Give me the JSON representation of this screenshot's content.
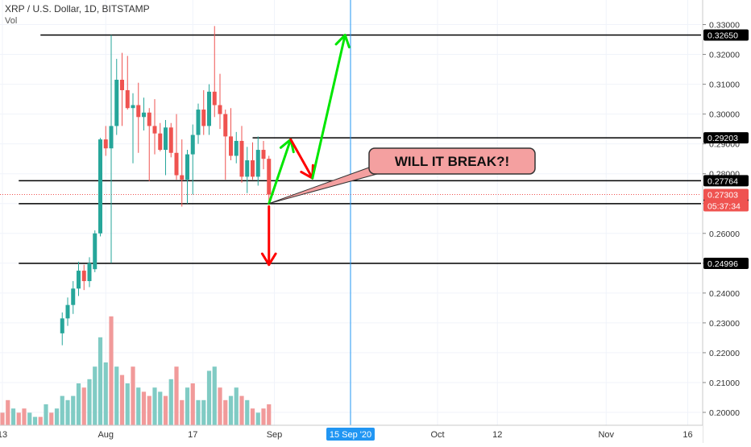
{
  "header": {
    "title": "XRP / U.S. Dollar, 1D, BITSTAMP",
    "vol_label": "Vol"
  },
  "colors": {
    "up": "#26a69a",
    "down": "#ef5350",
    "up_vol": "#80cbc4",
    "down_vol": "#f19a9a",
    "arrow_up": "#00e600",
    "arrow_down": "#ff0000",
    "callout_fill": "#f4a0a0",
    "crosshair": "#2196f3",
    "last_price": "#ef5350"
  },
  "chart_data": {
    "type": "candlestick",
    "symbol": "XRP / U.S. Dollar",
    "interval": "1D",
    "exchange": "BITSTAMP",
    "ylim": [
      0.1965,
      0.334
    ],
    "y_ticks": [
      0.2,
      0.21,
      0.22,
      0.23,
      0.24,
      0.25,
      0.26,
      0.27,
      0.28,
      0.29,
      0.3,
      0.31,
      0.32,
      0.33
    ],
    "x_ticks": [
      {
        "label": "13",
        "date": "2020-07-13"
      },
      {
        "label": "Aug",
        "date": "2020-08-01"
      },
      {
        "label": "17",
        "date": "2020-08-17"
      },
      {
        "label": "Sep",
        "date": "2020-09-01"
      },
      {
        "label": "Oct",
        "date": "2020-10-01"
      },
      {
        "label": "12",
        "date": "2020-10-12"
      },
      {
        "label": "Nov",
        "date": "2020-11-01"
      },
      {
        "label": "16",
        "date": "2020-11-16"
      }
    ],
    "candles": [
      {
        "date": "2020-07-24",
        "open": 0.2265,
        "high": 0.2335,
        "low": 0.2225,
        "close": 0.2315
      },
      {
        "date": "2020-07-25",
        "open": 0.2315,
        "high": 0.2385,
        "low": 0.229,
        "close": 0.236
      },
      {
        "date": "2020-07-26",
        "open": 0.236,
        "high": 0.244,
        "low": 0.233,
        "close": 0.2415
      },
      {
        "date": "2020-07-27",
        "open": 0.2415,
        "high": 0.2505,
        "low": 0.239,
        "close": 0.2475
      },
      {
        "date": "2020-07-28",
        "open": 0.2475,
        "high": 0.2495,
        "low": 0.241,
        "close": 0.244
      },
      {
        "date": "2020-07-29",
        "open": 0.244,
        "high": 0.252,
        "low": 0.242,
        "close": 0.25
      },
      {
        "date": "2020-07-30",
        "open": 0.248,
        "high": 0.261,
        "low": 0.247,
        "close": 0.26
      },
      {
        "date": "2020-07-31",
        "open": 0.26,
        "high": 0.292,
        "low": 0.259,
        "close": 0.2915
      },
      {
        "date": "2020-08-01",
        "open": 0.2915,
        "high": 0.296,
        "low": 0.286,
        "close": 0.2885
      },
      {
        "date": "2020-08-02",
        "open": 0.2885,
        "high": 0.3265,
        "low": 0.25,
        "close": 0.296
      },
      {
        "date": "2020-08-03",
        "open": 0.296,
        "high": 0.3185,
        "low": 0.293,
        "close": 0.3115
      },
      {
        "date": "2020-08-04",
        "open": 0.3115,
        "high": 0.3205,
        "low": 0.296,
        "close": 0.308
      },
      {
        "date": "2020-08-05",
        "open": 0.308,
        "high": 0.3195,
        "low": 0.3015,
        "close": 0.302
      },
      {
        "date": "2020-08-06",
        "open": 0.302,
        "high": 0.307,
        "low": 0.2835,
        "close": 0.303
      },
      {
        "date": "2020-08-07",
        "open": 0.303,
        "high": 0.3105,
        "low": 0.287,
        "close": 0.299
      },
      {
        "date": "2020-08-08",
        "open": 0.299,
        "high": 0.3055,
        "low": 0.2945,
        "close": 0.3005
      },
      {
        "date": "2020-08-09",
        "open": 0.3005,
        "high": 0.302,
        "low": 0.2775,
        "close": 0.296
      },
      {
        "date": "2020-08-10",
        "open": 0.296,
        "high": 0.305,
        "low": 0.2865,
        "close": 0.2935
      },
      {
        "date": "2020-08-11",
        "open": 0.2935,
        "high": 0.297,
        "low": 0.2875,
        "close": 0.288
      },
      {
        "date": "2020-08-12",
        "open": 0.288,
        "high": 0.298,
        "low": 0.2795,
        "close": 0.2955
      },
      {
        "date": "2020-08-13",
        "open": 0.2955,
        "high": 0.297,
        "low": 0.2855,
        "close": 0.287
      },
      {
        "date": "2020-08-14",
        "open": 0.287,
        "high": 0.3,
        "low": 0.278,
        "close": 0.2795
      },
      {
        "date": "2020-08-15",
        "open": 0.2795,
        "high": 0.2915,
        "low": 0.269,
        "close": 0.278
      },
      {
        "date": "2020-08-16",
        "open": 0.278,
        "high": 0.288,
        "low": 0.27,
        "close": 0.2865
      },
      {
        "date": "2020-08-17",
        "open": 0.2865,
        "high": 0.2965,
        "low": 0.273,
        "close": 0.293
      },
      {
        "date": "2020-08-18",
        "open": 0.293,
        "high": 0.3035,
        "low": 0.29,
        "close": 0.3015
      },
      {
        "date": "2020-08-19",
        "open": 0.3015,
        "high": 0.308,
        "low": 0.293,
        "close": 0.296
      },
      {
        "date": "2020-08-20",
        "open": 0.296,
        "high": 0.31,
        "low": 0.293,
        "close": 0.3075
      },
      {
        "date": "2020-08-21",
        "open": 0.3075,
        "high": 0.3295,
        "low": 0.299,
        "close": 0.303
      },
      {
        "date": "2020-08-22",
        "open": 0.303,
        "high": 0.3135,
        "low": 0.295,
        "close": 0.3
      },
      {
        "date": "2020-08-23",
        "open": 0.3,
        "high": 0.3015,
        "low": 0.278,
        "close": 0.2925
      },
      {
        "date": "2020-08-24",
        "open": 0.2925,
        "high": 0.302,
        "low": 0.2845,
        "close": 0.286
      },
      {
        "date": "2020-08-25",
        "open": 0.286,
        "high": 0.294,
        "low": 0.2835,
        "close": 0.291
      },
      {
        "date": "2020-08-26",
        "open": 0.291,
        "high": 0.296,
        "low": 0.277,
        "close": 0.279
      },
      {
        "date": "2020-08-27",
        "open": 0.279,
        "high": 0.289,
        "low": 0.2735,
        "close": 0.2845
      },
      {
        "date": "2020-08-28",
        "open": 0.2845,
        "high": 0.2905,
        "low": 0.278,
        "close": 0.279
      },
      {
        "date": "2020-08-29",
        "open": 0.279,
        "high": 0.2925,
        "low": 0.276,
        "close": 0.288
      },
      {
        "date": "2020-08-30",
        "open": 0.288,
        "high": 0.291,
        "low": 0.2815,
        "close": 0.285
      },
      {
        "date": "2020-08-31",
        "open": 0.285,
        "high": 0.286,
        "low": 0.27,
        "close": 0.273
      }
    ],
    "volume": [
      {
        "date": "2020-07-13",
        "value": 3,
        "dir": "down"
      },
      {
        "date": "2020-07-14",
        "value": 6,
        "dir": "down"
      },
      {
        "date": "2020-07-15",
        "value": 4,
        "dir": "up"
      },
      {
        "date": "2020-07-16",
        "value": 3,
        "dir": "down"
      },
      {
        "date": "2020-07-17",
        "value": 4,
        "dir": "down"
      },
      {
        "date": "2020-07-18",
        "value": 3,
        "dir": "up"
      },
      {
        "date": "2020-07-19",
        "value": 2,
        "dir": "up"
      },
      {
        "date": "2020-07-20",
        "value": 2,
        "dir": "down"
      },
      {
        "date": "2020-07-21",
        "value": 5,
        "dir": "up"
      },
      {
        "date": "2020-07-22",
        "value": 3,
        "dir": "down"
      },
      {
        "date": "2020-07-23",
        "value": 4,
        "dir": "up"
      },
      {
        "date": "2020-07-24",
        "value": 7,
        "dir": "up"
      },
      {
        "date": "2020-07-25",
        "value": 6,
        "dir": "up"
      },
      {
        "date": "2020-07-26",
        "value": 7,
        "dir": "up"
      },
      {
        "date": "2020-07-27",
        "value": 10,
        "dir": "up"
      },
      {
        "date": "2020-07-28",
        "value": 9,
        "dir": "down"
      },
      {
        "date": "2020-07-29",
        "value": 11,
        "dir": "up"
      },
      {
        "date": "2020-07-30",
        "value": 14,
        "dir": "up"
      },
      {
        "date": "2020-07-31",
        "value": 21,
        "dir": "up"
      },
      {
        "date": "2020-08-01",
        "value": 15,
        "dir": "up"
      },
      {
        "date": "2020-08-02",
        "value": 26,
        "dir": "down"
      },
      {
        "date": "2020-08-03",
        "value": 14,
        "dir": "up"
      },
      {
        "date": "2020-08-04",
        "value": 12,
        "dir": "down"
      },
      {
        "date": "2020-08-05",
        "value": 10,
        "dir": "up"
      },
      {
        "date": "2020-08-06",
        "value": 14,
        "dir": "down"
      },
      {
        "date": "2020-08-07",
        "value": 9,
        "dir": "up"
      },
      {
        "date": "2020-08-08",
        "value": 8,
        "dir": "down"
      },
      {
        "date": "2020-08-09",
        "value": 7,
        "dir": "down"
      },
      {
        "date": "2020-08-10",
        "value": 9,
        "dir": "up"
      },
      {
        "date": "2020-08-11",
        "value": 8,
        "dir": "up"
      },
      {
        "date": "2020-08-12",
        "value": 7,
        "dir": "down"
      },
      {
        "date": "2020-08-13",
        "value": 11,
        "dir": "up"
      },
      {
        "date": "2020-08-14",
        "value": 14,
        "dir": "down"
      },
      {
        "date": "2020-08-15",
        "value": 6,
        "dir": "down"
      },
      {
        "date": "2020-08-16",
        "value": 9,
        "dir": "up"
      },
      {
        "date": "2020-08-17",
        "value": 10,
        "dir": "down"
      },
      {
        "date": "2020-08-18",
        "value": 6,
        "dir": "up"
      },
      {
        "date": "2020-08-19",
        "value": 6,
        "dir": "up"
      },
      {
        "date": "2020-08-20",
        "value": 13,
        "dir": "up"
      },
      {
        "date": "2020-08-21",
        "value": 14,
        "dir": "up"
      },
      {
        "date": "2020-08-22",
        "value": 9,
        "dir": "down"
      },
      {
        "date": "2020-08-23",
        "value": 6,
        "dir": "down"
      },
      {
        "date": "2020-08-24",
        "value": 7,
        "dir": "up"
      },
      {
        "date": "2020-08-25",
        "value": 9,
        "dir": "up"
      },
      {
        "date": "2020-08-26",
        "value": 7,
        "dir": "down"
      },
      {
        "date": "2020-08-27",
        "value": 6,
        "dir": "up"
      },
      {
        "date": "2020-08-28",
        "value": 4,
        "dir": "down"
      },
      {
        "date": "2020-08-29",
        "value": 3,
        "dir": "up"
      },
      {
        "date": "2020-08-30",
        "value": 4,
        "dir": "down"
      },
      {
        "date": "2020-08-31",
        "value": 5,
        "dir": "down"
      }
    ],
    "horizontal_levels": [
      {
        "value": 0.3265,
        "label": "0.32650",
        "from": "2020-07-20"
      },
      {
        "value": 0.29203,
        "label": "0.29203",
        "from": "2020-08-28"
      },
      {
        "value": 0.27764,
        "label": "0.27764",
        "from": "2020-07-16"
      },
      {
        "value": 0.26997,
        "label": "0.26997",
        "from": "2020-07-16"
      },
      {
        "value": 0.24996,
        "label": "0.24996",
        "from": "2020-07-16"
      }
    ],
    "last_price": {
      "value": 0.27303,
      "label": "0.27303",
      "countdown": "05:37:34"
    },
    "crosshair": {
      "date": "2020-09-15",
      "label": "15 Sep '20"
    },
    "annotations": {
      "callout_text": "WILL IT BREAK?!",
      "arrows": [
        {
          "kind": "up",
          "points": [
            [
              "2020-08-31",
              0.27
            ],
            [
              "2020-09-04",
              0.2915
            ]
          ]
        },
        {
          "kind": "down",
          "points": [
            [
              "2020-09-04",
              0.2915
            ],
            [
              "2020-09-08",
              0.2785
            ]
          ]
        },
        {
          "kind": "up",
          "points": [
            [
              "2020-09-08",
              0.2785
            ],
            [
              "2020-09-14",
              0.3265
            ]
          ]
        },
        {
          "kind": "down",
          "points": [
            [
              "2020-08-31",
              0.269
            ],
            [
              "2020-08-31",
              0.2495
            ]
          ]
        }
      ]
    }
  }
}
